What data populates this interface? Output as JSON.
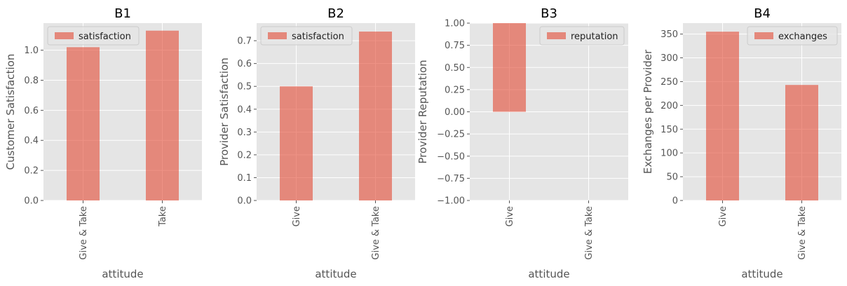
{
  "chart_data": [
    {
      "type": "bar",
      "title": "B1",
      "xlabel": "attitude",
      "ylabel": "Customer Satisfaction",
      "categories": [
        "Give & Take",
        "Take"
      ],
      "series": [
        {
          "name": "satisfaction",
          "values": [
            1.02,
            1.13
          ]
        }
      ],
      "ylim": [
        0,
        1.18
      ],
      "yticks": [
        0.0,
        0.2,
        0.4,
        0.6,
        0.8,
        1.0
      ],
      "ytick_labels": [
        "0.0",
        "0.2",
        "0.4",
        "0.6",
        "0.8",
        "1.0"
      ],
      "legend_position": "top-left",
      "grid": true
    },
    {
      "type": "bar",
      "title": "B2",
      "xlabel": "attitude",
      "ylabel": "Provider Satisfaction",
      "categories": [
        "Give",
        "Give & Take"
      ],
      "series": [
        {
          "name": "satisfaction",
          "values": [
            0.5,
            0.74
          ]
        }
      ],
      "ylim": [
        0,
        0.777
      ],
      "yticks": [
        0.0,
        0.1,
        0.2,
        0.3,
        0.4,
        0.5,
        0.6,
        0.7
      ],
      "ytick_labels": [
        "0.0",
        "0.1",
        "0.2",
        "0.3",
        "0.4",
        "0.5",
        "0.6",
        "0.7"
      ],
      "legend_position": "top-left",
      "grid": true
    },
    {
      "type": "bar",
      "title": "B3",
      "xlabel": "attitude",
      "ylabel": "Provider Reputation",
      "categories": [
        "Give",
        "Give & Take"
      ],
      "series": [
        {
          "name": "reputation",
          "values": [
            1.0,
            0.0
          ]
        }
      ],
      "ylim": [
        -1.0,
        1.0
      ],
      "yticks": [
        -1.0,
        -0.75,
        -0.5,
        -0.25,
        0.0,
        0.25,
        0.5,
        0.75,
        1.0
      ],
      "ytick_labels": [
        "−1.00",
        "−0.75",
        "−0.50",
        "−0.25",
        "0.00",
        "0.25",
        "0.50",
        "0.75",
        "1.00"
      ],
      "legend_position": "top-right",
      "grid": true
    },
    {
      "type": "bar",
      "title": "B4",
      "xlabel": "attitude",
      "ylabel": "Exchanges per Provider",
      "categories": [
        "Give",
        "Give & Take"
      ],
      "series": [
        {
          "name": "exchanges",
          "values": [
            355,
            243
          ]
        }
      ],
      "ylim": [
        0,
        373
      ],
      "yticks": [
        0,
        50,
        100,
        150,
        200,
        250,
        300,
        350
      ],
      "ytick_labels": [
        "0",
        "50",
        "100",
        "150",
        "200",
        "250",
        "300",
        "350"
      ],
      "legend_position": "top-right",
      "grid": true
    }
  ],
  "colors": {
    "bar": "#e24a33",
    "panel_background": "#e5e5e5",
    "grid": "#ffffff",
    "text": "#555555",
    "title": "#000000"
  }
}
